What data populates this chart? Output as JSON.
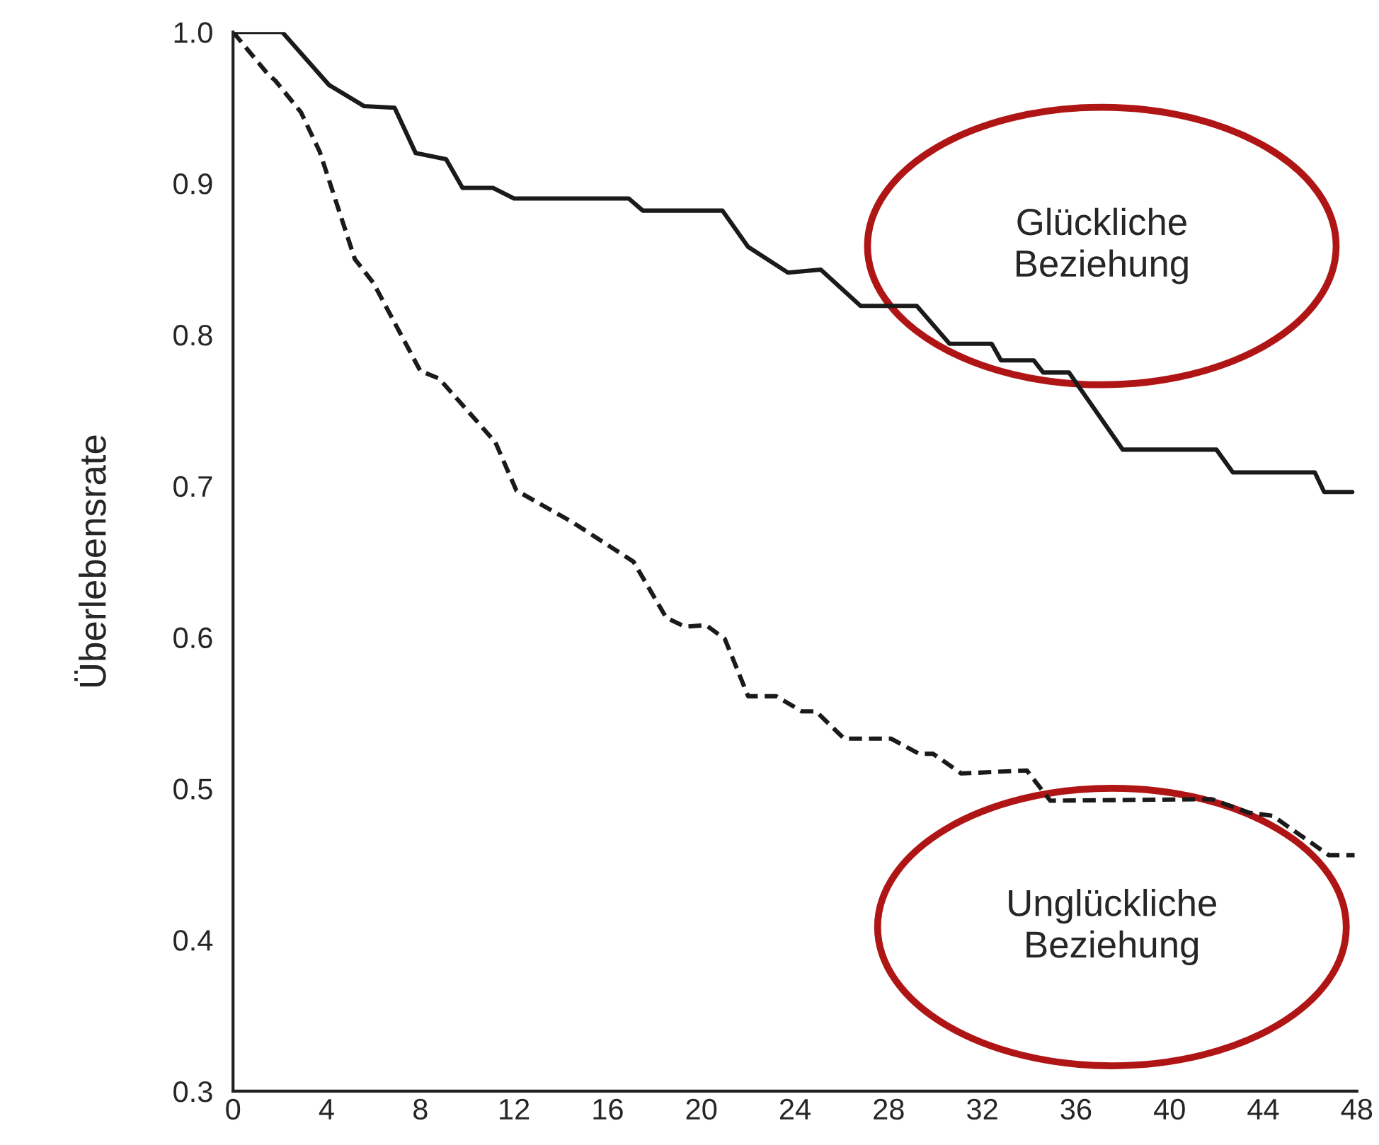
{
  "chart_data": {
    "type": "line",
    "ylabel": "Überlebensrate",
    "xlim": [
      0,
      48
    ],
    "xticks": [
      0,
      4,
      8,
      12,
      16,
      20,
      24,
      28,
      32,
      36,
      40,
      44,
      48
    ],
    "ylim": [
      0.3,
      1.0
    ],
    "yticks": [
      0.3,
      0.4,
      0.5,
      0.6,
      0.7,
      0.8,
      0.9,
      {
        "value": 1.0,
        "label": "1.0"
      }
    ],
    "grid": false,
    "legend": false,
    "marker": "none",
    "series": [
      {
        "color": "#1a1a1a",
        "line_style": "solid",
        "x": [
          0,
          2.1,
          4.1,
          5.6,
          6.9,
          7.8,
          9.1,
          9.8,
          11.1,
          12.0,
          16.9,
          17.5,
          20.9,
          22.0,
          23.7,
          25.1,
          26.8,
          29.2,
          30.6,
          32.4,
          32.8,
          34.2,
          34.6,
          35.7,
          38.0,
          42.0,
          42.7,
          46.2,
          46.6,
          47.8
        ],
        "values": [
          1.0,
          1.0,
          0.965,
          0.951,
          0.95,
          0.92,
          0.916,
          0.897,
          0.897,
          0.89,
          0.89,
          0.882,
          0.882,
          0.858,
          0.841,
          0.843,
          0.819,
          0.819,
          0.794,
          0.794,
          0.783,
          0.783,
          0.775,
          0.775,
          0.724,
          0.724,
          0.709,
          0.709,
          0.696,
          0.696
        ]
      },
      {
        "color": "#1a1a1a",
        "line_style": "dashed",
        "x": [
          0,
          1.5,
          1.8,
          2.9,
          3.7,
          5.2,
          6.0,
          8.0,
          8.8,
          11.2,
          12.1,
          14.5,
          16.7,
          17.1,
          18.5,
          19.3,
          20.2,
          21.0,
          22.0,
          23.2,
          24.3,
          24.9,
          26.1,
          28.1,
          29.3,
          29.9,
          31.1,
          33.9,
          34.9,
          41.8,
          43.4,
          44.4,
          46.8,
          47.9
        ],
        "values": [
          1.0,
          0.972,
          0.968,
          0.947,
          0.921,
          0.85,
          0.834,
          0.776,
          0.771,
          0.729,
          0.697,
          0.676,
          0.654,
          0.65,
          0.613,
          0.607,
          0.608,
          0.599,
          0.561,
          0.561,
          0.551,
          0.551,
          0.533,
          0.533,
          0.523,
          0.523,
          0.51,
          0.512,
          0.492,
          0.493,
          0.484,
          0.482,
          0.456,
          0.456
        ]
      }
    ],
    "annotations": [
      "Glückliche\nBeziehung",
      "Unglückliche\nBeziehung"
    ]
  }
}
